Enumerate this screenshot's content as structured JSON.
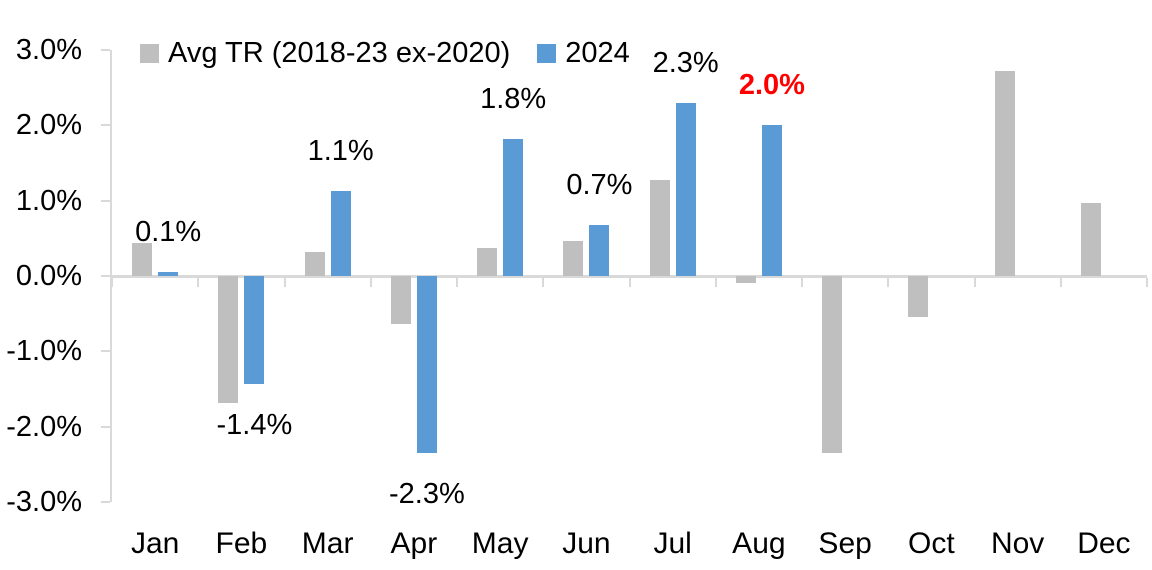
{
  "chart_data": {
    "type": "bar",
    "title": "",
    "xlabel": "",
    "ylabel": "",
    "ylim": [
      -3.0,
      3.0
    ],
    "grid": false,
    "legend_position": "top",
    "axis_color": "#d9d9d9",
    "ytick_labels": [
      "3.0%",
      "2.0%",
      "1.0%",
      "0.0%",
      "-1.0%",
      "-2.0%",
      "-3.0%"
    ],
    "ytick_values": [
      3,
      2,
      1,
      0,
      -1,
      -2,
      -3
    ],
    "categories": [
      "Jan",
      "Feb",
      "Mar",
      "Apr",
      "May",
      "Jun",
      "Jul",
      "Aug",
      "Sep",
      "Oct",
      "Nov",
      "Dec"
    ],
    "series": [
      {
        "name": "Avg TR (2018-23 ex-2020)",
        "color": "#bfbfbf",
        "values": [
          0.44,
          -1.69,
          0.32,
          -0.64,
          0.37,
          0.46,
          1.27,
          -0.09,
          -2.35,
          -0.55,
          2.72,
          0.97
        ]
      },
      {
        "name": "2024",
        "color": "#5b9bd5",
        "values": [
          0.05,
          -1.43,
          1.13,
          -2.35,
          1.82,
          0.68,
          2.3,
          2.0
        ],
        "data_labels": [
          {
            "text": "0.1%",
            "color": "#000000",
            "bold": false
          },
          {
            "text": "-1.4%",
            "color": "#000000",
            "bold": false
          },
          {
            "text": "1.1%",
            "color": "#000000",
            "bold": false
          },
          {
            "text": "-2.3%",
            "color": "#000000",
            "bold": false
          },
          {
            "text": "1.8%",
            "color": "#000000",
            "bold": false
          },
          {
            "text": "0.7%",
            "color": "#000000",
            "bold": false
          },
          {
            "text": "2.3%",
            "color": "#000000",
            "bold": false
          },
          {
            "text": "2.0%",
            "color": "#ff0000",
            "bold": true
          }
        ]
      }
    ]
  },
  "legend": {
    "avg_label": "Avg TR (2018-23 ex-2020)",
    "year_label": "2024",
    "avg_color": "#bfbfbf",
    "year_color": "#5b9bd5"
  }
}
